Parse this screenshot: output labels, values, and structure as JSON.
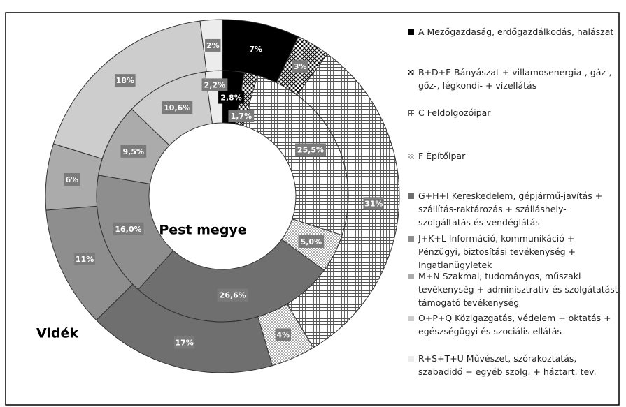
{
  "chart_data": {
    "type": "donut",
    "categories": [
      "A  Mezőgazdaság, erdőgazdálkodás, halászat",
      "B+D+E  Bányászat + villamosenergia-, gáz-, gőz-, légkondi- + vízellátás",
      "C  Feldolgozóipar",
      "F  Építőipar",
      "G+H+I  Kereskedelem, gépjármű-javítás + szállítás-raktározás + szálláshely-szolgáltatás és vendéglátás",
      "J+K+L Információ, kommunikáció + Pénzügyi, biztosítási tevékenység + Ingatlanügyletek",
      "M+N  Szakmai, tudományos, műszaki tevékenység + adminisztratív és szolgátatást támogató tevékenység",
      "O+P+Q  Közigazgatás, védelem + oktatás + egészségügyi és szociális ellátás",
      "R+S+T+U  Művészet, szórakoztatás, szabadidő + egyéb szolg. + háztart. tev."
    ],
    "colors": [
      "#000000",
      "crosshatch",
      "grid",
      "dots",
      "#6f6f6f",
      "#8e8e8e",
      "#ababab",
      "#cdcdcd",
      "#ececec"
    ],
    "series": [
      {
        "name": "Pest megye",
        "values": [
          2.8,
          1.7,
          25.5,
          5.0,
          26.6,
          16.0,
          9.5,
          10.6,
          2.2
        ],
        "value_labels": [
          "2,8%",
          "1,7%",
          "25,5%",
          "5,0%",
          "26,6%",
          "16,0%",
          "9,5%",
          "10,6%",
          "2,2%"
        ]
      },
      {
        "name": "Vidék",
        "values": [
          7,
          3,
          31,
          4,
          17,
          11,
          6,
          18,
          2
        ],
        "value_labels": [
          "7%",
          "3%",
          "31%",
          "4%",
          "17%",
          "11%",
          "6%",
          "18%",
          "2%"
        ]
      }
    ]
  }
}
